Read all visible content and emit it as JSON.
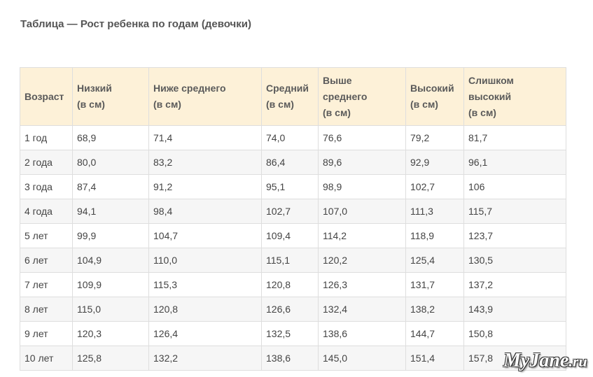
{
  "caption": "Таблица — Рост ребенка по годам (девочки)",
  "table": {
    "headers": [
      [
        "Возраст"
      ],
      [
        "Низкий",
        "(в см)"
      ],
      [
        "Ниже среднего",
        "(в см)"
      ],
      [
        "Средний",
        "(в см)"
      ],
      [
        "Выше",
        "среднего",
        "(в см)"
      ],
      [
        "Высокий",
        "(в см)"
      ],
      [
        "Слишком",
        "высокий",
        "(в см)"
      ]
    ],
    "rows": [
      [
        "1 год",
        "68,9",
        "71,4",
        "74,0",
        "76,6",
        "79,2",
        "81,7"
      ],
      [
        "2 года",
        "80,0",
        "83,2",
        "86,4",
        "89,6",
        "92,9",
        "96,1"
      ],
      [
        "3 года",
        "87,4",
        "91,2",
        "95,1",
        "98,9",
        "102,7",
        "106"
      ],
      [
        "4 года",
        "94,1",
        "98,4",
        "102,7",
        "107,0",
        "111,3",
        "115,7"
      ],
      [
        "5 лет",
        "99,9",
        "104,7",
        "109,4",
        "114,2",
        "118,9",
        "123,7"
      ],
      [
        "6 лет",
        "104,9",
        "110,0",
        "115,1",
        "120,2",
        "125,4",
        "130,5"
      ],
      [
        "7 лет",
        "109,9",
        "115,3",
        "120,8",
        "126,3",
        "131,7",
        "137,2"
      ],
      [
        "8 лет",
        "115,0",
        "120,8",
        "126,6",
        "132,4",
        "138,2",
        "143,9"
      ],
      [
        "9 лет",
        "120,3",
        "126,4",
        "132,5",
        "138,6",
        "144,7",
        "150,8"
      ],
      [
        "10 лет",
        "125,8",
        "132,2",
        "138,6",
        "145,0",
        "151,4",
        "157,8"
      ]
    ]
  },
  "watermark": {
    "name": "MyJane",
    "suffix": ".ru"
  },
  "colors": {
    "header_bg": "#fdf1d8",
    "border": "#dedede",
    "row_alt_bg": "#f6f6f6"
  }
}
